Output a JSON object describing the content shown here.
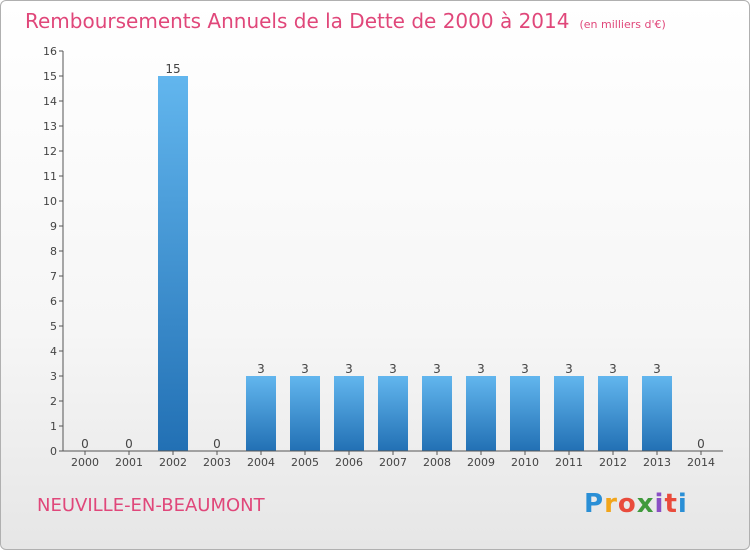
{
  "title": "Remboursements Annuels de la Dette de 2000 à 2014",
  "unit": "(en milliers d'€)",
  "commune": "NEUVILLE-EN-BEAUMONT",
  "logo": {
    "letters": [
      "P",
      "r",
      "o",
      "x",
      "i",
      "t",
      "i"
    ],
    "colors": [
      "#2a8fd6",
      "#f2a51a",
      "#e94b3c",
      "#3f9a3c",
      "#8a4fc4",
      "#e94b3c",
      "#2a8fd6"
    ]
  },
  "colors": {
    "title": "#e0477a",
    "bar_top": "#62b6ee",
    "bar_bottom": "#2270b4"
  },
  "chart_data": {
    "type": "bar",
    "categories": [
      "2000",
      "2001",
      "2002",
      "2003",
      "2004",
      "2005",
      "2006",
      "2007",
      "2008",
      "2009",
      "2010",
      "2011",
      "2012",
      "2013",
      "2014"
    ],
    "values": [
      0,
      0,
      15,
      0,
      3,
      3,
      3,
      3,
      3,
      3,
      3,
      3,
      3,
      3,
      0
    ],
    "value_labels": [
      "0",
      "0",
      "15",
      "0",
      "3",
      "3",
      "3",
      "3",
      "3",
      "3",
      "3",
      "3",
      "3",
      "3",
      "0"
    ],
    "ylim": [
      0,
      16
    ],
    "yticks": [
      0,
      1,
      2,
      3,
      4,
      5,
      6,
      7,
      8,
      9,
      10,
      11,
      12,
      13,
      14,
      15,
      16
    ],
    "ytick_labels": [
      "0",
      "1",
      "2",
      "3",
      "4",
      "5",
      "6",
      "7",
      "8",
      "9",
      "10",
      "11",
      "12",
      "13",
      "14",
      "15",
      "16"
    ],
    "grid": false
  }
}
